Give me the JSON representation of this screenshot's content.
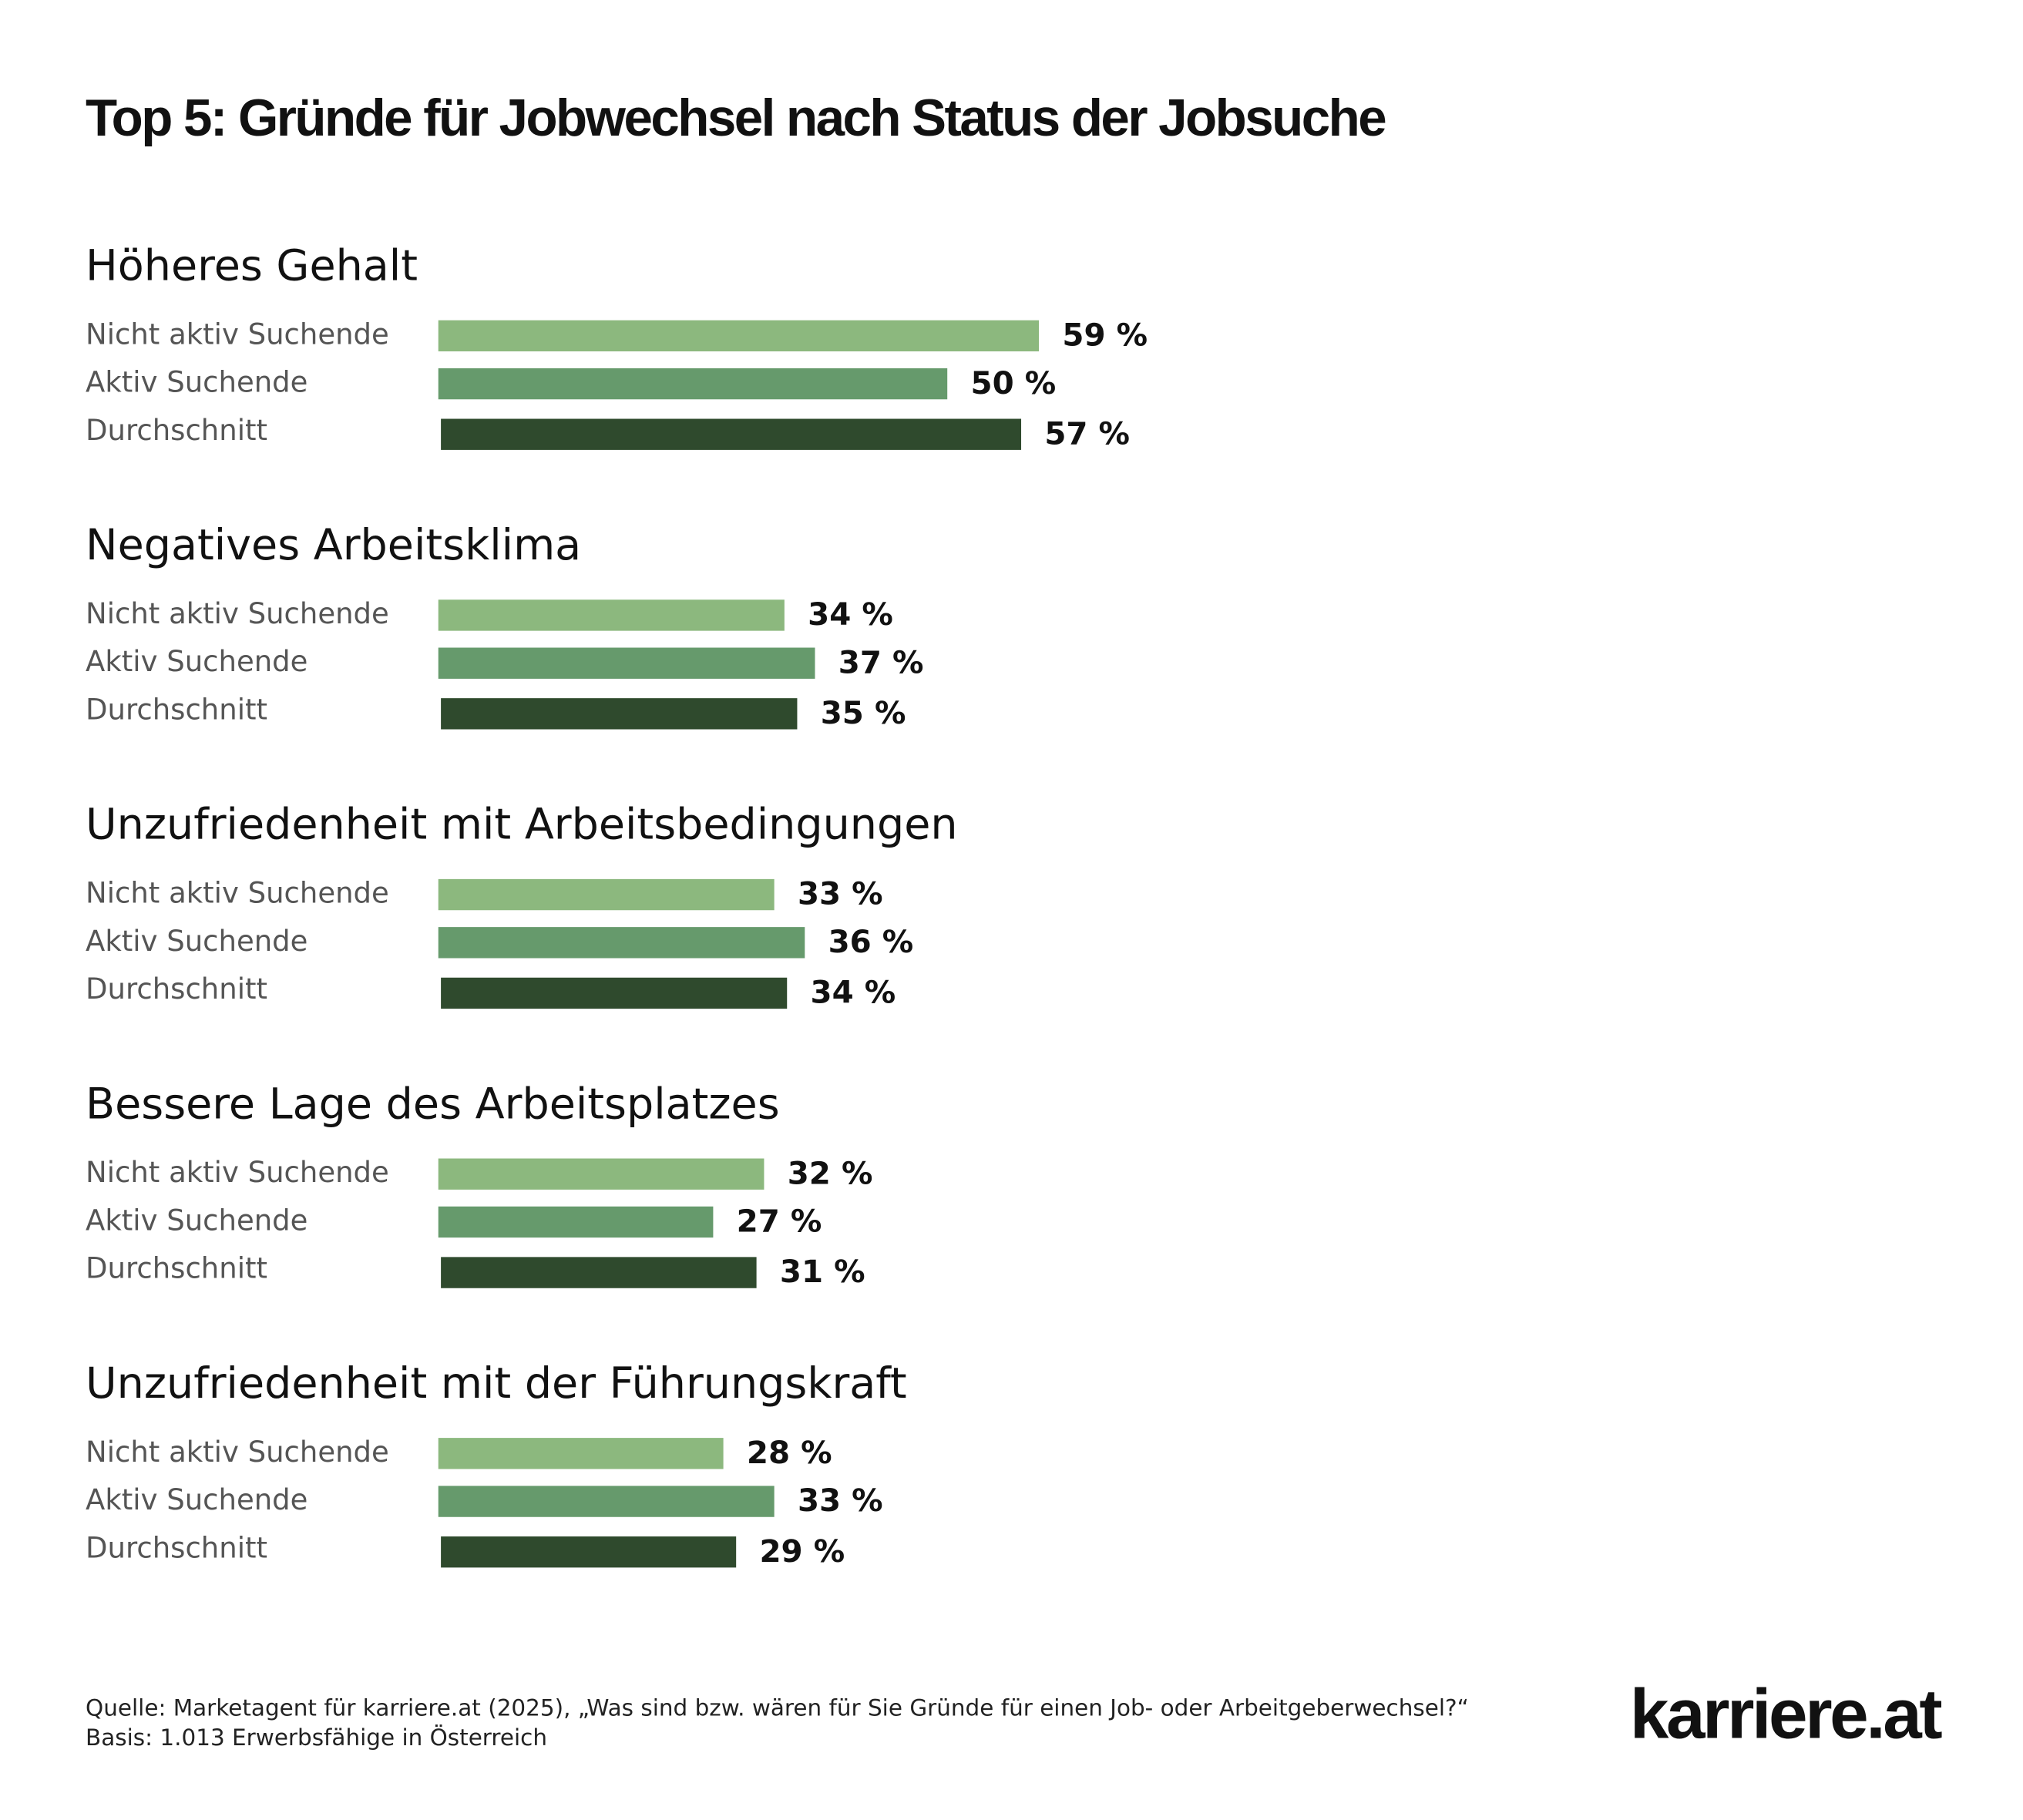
{
  "chart_data": {
    "type": "bar",
    "title": "Top 5: Gründe für Jobwechsel nach Status der Jobsuche",
    "categories": [
      "Höheres Gehalt",
      "Negatives Arbeitsklima",
      "Unzufriedenheit mit Arbeitsbedingungen",
      "Bessere Lage des Arbeitsplatzes",
      "Unzufriedenheit mit der Führungskraft"
    ],
    "series": [
      {
        "name": "Nicht aktiv Suchende",
        "color": "#8cb87e",
        "values": [
          59,
          34,
          33,
          32,
          28
        ],
        "value_labels": [
          "59 %",
          "34 %",
          "33 %",
          "32 %",
          "28 %"
        ]
      },
      {
        "name": "Aktiv Suchende",
        "color": "#669a6c",
        "values": [
          50,
          37,
          36,
          27,
          33
        ],
        "value_labels": [
          "50 %",
          "37 %",
          "36 %",
          "27 %",
          "33 %"
        ]
      },
      {
        "name": "Durchschnitt",
        "color": "#2f4a2d",
        "values": [
          57,
          35,
          34,
          31,
          29
        ],
        "value_labels": [
          "57 %",
          "35 %",
          "34 %",
          "31 %",
          "29 %"
        ]
      }
    ],
    "source": "Quelle: Marketagent für karriere.at (2025), „Was sind bzw. wären für Sie Gründe für einen Job- oder Arbeitgeberwechsel?“",
    "basis": "Basis: 1.013 Erwerbsfähige in Österreich",
    "logo": "karriere.at"
  }
}
